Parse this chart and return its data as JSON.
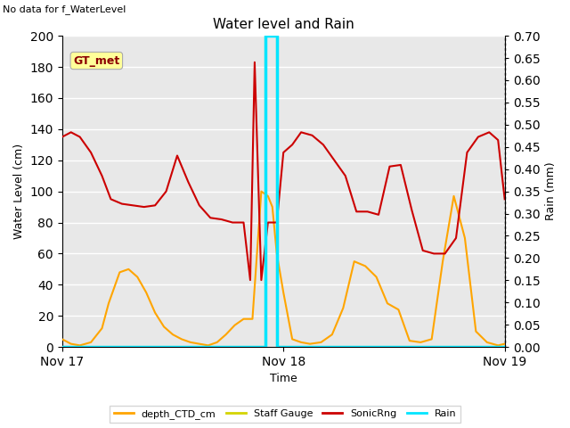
{
  "title": "Water level and Rain",
  "subtitle": "No data for f_WaterLevel",
  "xlabel": "Time",
  "ylabel_left": "Water Level (cm)",
  "ylabel_right": "Rain (mm)",
  "ylim_left": [
    0,
    200
  ],
  "ylim_right": [
    0,
    0.7
  ],
  "yticks_left": [
    0,
    20,
    40,
    60,
    80,
    100,
    120,
    140,
    160,
    180,
    200
  ],
  "yticks_right": [
    0.0,
    0.05,
    0.1,
    0.15,
    0.2,
    0.25,
    0.3,
    0.35,
    0.4,
    0.45,
    0.5,
    0.55,
    0.6,
    0.65,
    0.7
  ],
  "bg_color": "#e8e8e8",
  "grid_color": "#ffffff",
  "annotation_text": "GT_met",
  "annotation_color": "#8b0000",
  "annotation_bg": "#ffff99",
  "depth_CTD_cm_color": "#ffa500",
  "staff_gauge_color": "#d4d400",
  "sonicRng_color": "#cc0000",
  "rain_color": "#00e5ff",
  "depth_CTD_x": [
    0.0,
    0.04,
    0.08,
    0.13,
    0.18,
    0.21,
    0.26,
    0.3,
    0.34,
    0.38,
    0.42,
    0.46,
    0.5,
    0.54,
    0.58,
    0.62,
    0.66,
    0.7,
    0.74,
    0.78,
    0.82,
    0.86,
    0.9,
    0.93,
    0.95,
    0.97,
    1.0,
    1.04,
    1.08,
    1.12,
    1.17,
    1.22,
    1.27,
    1.32,
    1.37,
    1.42,
    1.47,
    1.52,
    1.57,
    1.62,
    1.67,
    1.72,
    1.77,
    1.82,
    1.87,
    1.92,
    1.97,
    2.0
  ],
  "depth_CTD_y": [
    5,
    2,
    1,
    3,
    12,
    28,
    48,
    50,
    45,
    35,
    22,
    13,
    8,
    5,
    3,
    2,
    1,
    3,
    8,
    14,
    18,
    18,
    100,
    97,
    90,
    60,
    35,
    5,
    3,
    2,
    3,
    8,
    25,
    55,
    52,
    45,
    28,
    24,
    4,
    3,
    5,
    55,
    97,
    70,
    10,
    3,
    1,
    2
  ],
  "sonicRng_x": [
    0.0,
    0.04,
    0.08,
    0.13,
    0.18,
    0.22,
    0.27,
    0.32,
    0.37,
    0.42,
    0.47,
    0.52,
    0.57,
    0.62,
    0.67,
    0.72,
    0.77,
    0.82,
    0.85,
    0.87,
    0.9,
    0.93,
    0.95,
    0.97,
    1.0,
    1.04,
    1.08,
    1.13,
    1.18,
    1.23,
    1.28,
    1.33,
    1.38,
    1.43,
    1.48,
    1.53,
    1.58,
    1.63,
    1.68,
    1.73,
    1.78,
    1.83,
    1.88,
    1.93,
    1.97,
    2.0
  ],
  "sonicRng_y": [
    135,
    138,
    135,
    125,
    110,
    95,
    92,
    91,
    90,
    91,
    100,
    123,
    106,
    91,
    83,
    82,
    80,
    80,
    43,
    183,
    43,
    80,
    80,
    80,
    125,
    130,
    138,
    136,
    130,
    120,
    110,
    87,
    87,
    85,
    116,
    117,
    88,
    62,
    60,
    60,
    70,
    125,
    135,
    138,
    133,
    95
  ],
  "rain_x": [
    0.0,
    0.92,
    0.92,
    0.97,
    0.97,
    2.0
  ],
  "rain_y": [
    0.0,
    0.0,
    0.7,
    0.7,
    0.0,
    0.0
  ],
  "staff_gauge_x": [
    0.0,
    0.92,
    0.92,
    0.97,
    0.97,
    2.0
  ],
  "staff_gauge_y": [
    0,
    0,
    200,
    200,
    0,
    0
  ],
  "xtick_positions": [
    0,
    1,
    2
  ],
  "xtick_labels": [
    "Nov 17",
    "Nov 18",
    "Nov 19"
  ],
  "xlim": [
    0,
    2.0
  ],
  "figsize": [
    6.4,
    4.8
  ],
  "dpi": 100
}
